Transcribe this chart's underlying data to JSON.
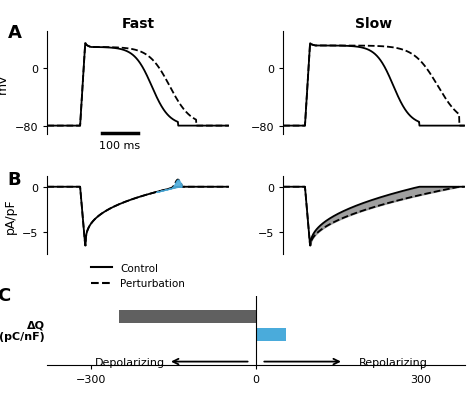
{
  "panel_A_title_left": "Fast",
  "panel_A_title_right": "Slow",
  "ylabel_A": "mV",
  "scalebar_label": "100 ms",
  "ylabel_B": "pA/pF",
  "legend_control": "Control",
  "legend_perturb": "Perturbation",
  "bar_gray_value": -250,
  "bar_blue_value": 55,
  "bar_color_gray": "#606060",
  "bar_color_blue": "#4AABDB",
  "xticks_C": [
    -300,
    0,
    300
  ],
  "xlabel_C_left": "Depolarizing",
  "xlabel_C_right": "Repolarizing",
  "ylabel_C": "ΔQ\n(pC/nF)",
  "background_color": "#ffffff",
  "line_color": "#000000"
}
